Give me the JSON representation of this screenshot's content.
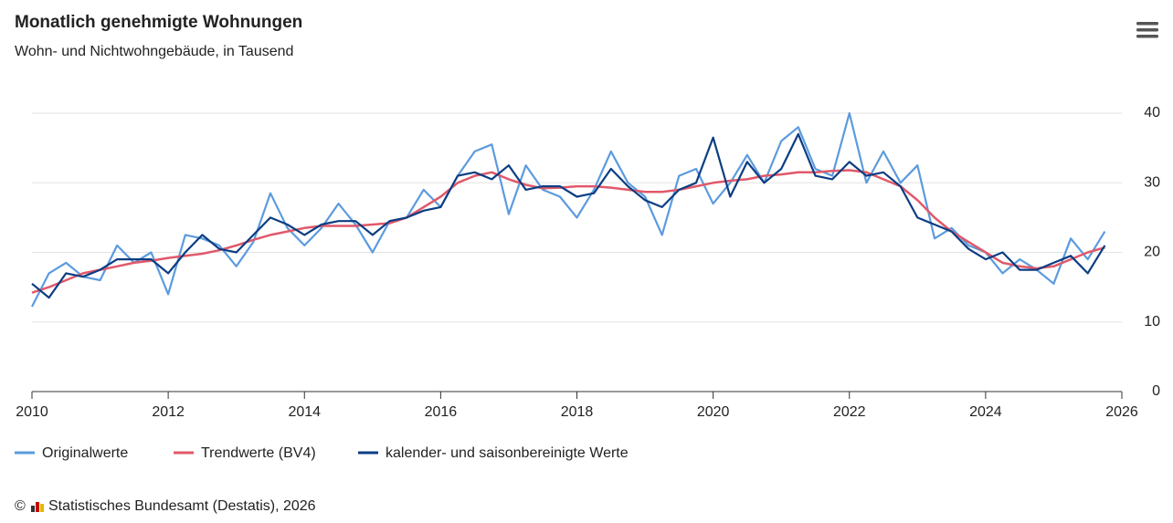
{
  "chart_data": {
    "type": "line",
    "title": "Monatlich genehmigte Wohnungen",
    "subtitle": "Wohn- und Nichtwohngebäude, in Tausend",
    "copyright": "©",
    "credits": "Statistisches Bundesamt (Destatis), 2026",
    "x": [
      2010,
      2010.25,
      2010.5,
      2010.75,
      2011,
      2011.25,
      2011.5,
      2011.75,
      2012,
      2012.25,
      2012.5,
      2012.75,
      2013,
      2013.25,
      2013.5,
      2013.75,
      2014,
      2014.25,
      2014.5,
      2014.75,
      2015,
      2015.25,
      2015.5,
      2015.75,
      2016,
      2016.25,
      2016.5,
      2016.75,
      2017,
      2017.25,
      2017.5,
      2017.75,
      2018,
      2018.25,
      2018.5,
      2018.75,
      2019,
      2019.25,
      2019.5,
      2019.75,
      2020,
      2020.25,
      2020.5,
      2020.75,
      2021,
      2021.25,
      2021.5,
      2021.75,
      2022,
      2022.25,
      2022.5,
      2022.75,
      2023,
      2023.25,
      2023.5,
      2023.75,
      2024,
      2024.25,
      2024.5,
      2024.75,
      2025,
      2025.25,
      2025.5,
      2025.75
    ],
    "xlim": [
      2010,
      2026
    ],
    "xticks": [
      2010,
      2012,
      2014,
      2016,
      2018,
      2020,
      2022,
      2024,
      2026
    ],
    "ylim": [
      0,
      40
    ],
    "yticks": [
      0,
      10,
      20,
      30,
      40
    ],
    "grid": true,
    "legend": "bottom",
    "series": [
      {
        "name": "Originalwerte",
        "color": "#5b9bde",
        "values": [
          12.2,
          17,
          18.5,
          16.5,
          16,
          21,
          18.5,
          20,
          14,
          22.5,
          22,
          21,
          18,
          21.5,
          28.5,
          23.5,
          21,
          23.5,
          27,
          24,
          20,
          24.5,
          25,
          29,
          26.5,
          31,
          34.5,
          35.5,
          25.5,
          32.5,
          29,
          28,
          25,
          29,
          34.5,
          30,
          28,
          22.5,
          31,
          32,
          27,
          30,
          34,
          30,
          36,
          38,
          32,
          31,
          40,
          30,
          34.5,
          30,
          32.5,
          22,
          23.5,
          21,
          20,
          17,
          19,
          17.5,
          15.5,
          22,
          19,
          23
        ]
      },
      {
        "name": "Trendwerte (BV4)",
        "color": "#e0596a",
        "values": [
          14.2,
          15,
          16,
          17,
          17.5,
          18,
          18.5,
          18.8,
          19.2,
          19.5,
          19.8,
          20.3,
          21,
          21.8,
          22.5,
          23,
          23.5,
          23.8,
          23.8,
          23.8,
          24,
          24.2,
          25,
          26.5,
          28,
          30,
          31,
          31.5,
          30.5,
          29.7,
          29.2,
          29.3,
          29.5,
          29.5,
          29.3,
          29,
          28.7,
          28.7,
          29,
          29.5,
          30,
          30.3,
          30.5,
          31,
          31.2,
          31.5,
          31.5,
          31.7,
          31.8,
          31.5,
          30.5,
          29.5,
          27.5,
          25,
          23,
          21.5,
          20,
          18.5,
          18,
          17.7,
          18,
          19,
          20,
          20.7
        ]
      },
      {
        "name": "kalender- und saisonbereinigte Werte",
        "color": "#0b3d82",
        "values": [
          15.5,
          13.5,
          17,
          16.5,
          17.5,
          19,
          19,
          19,
          17,
          20,
          22.5,
          20.5,
          20,
          22.5,
          25,
          24,
          22.5,
          24,
          24.5,
          24.5,
          22.5,
          24.5,
          25,
          26,
          26.5,
          31,
          31.5,
          30.5,
          32.5,
          29,
          29.5,
          29.5,
          28,
          28.5,
          32,
          29.5,
          27.5,
          26.5,
          29,
          30,
          36.5,
          28,
          33,
          30,
          32,
          37,
          31,
          30.5,
          33,
          31,
          31.5,
          29.5,
          25,
          24,
          23,
          20.5,
          19,
          20,
          17.5,
          17.5,
          18.5,
          19.5,
          17,
          21
        ]
      }
    ]
  }
}
